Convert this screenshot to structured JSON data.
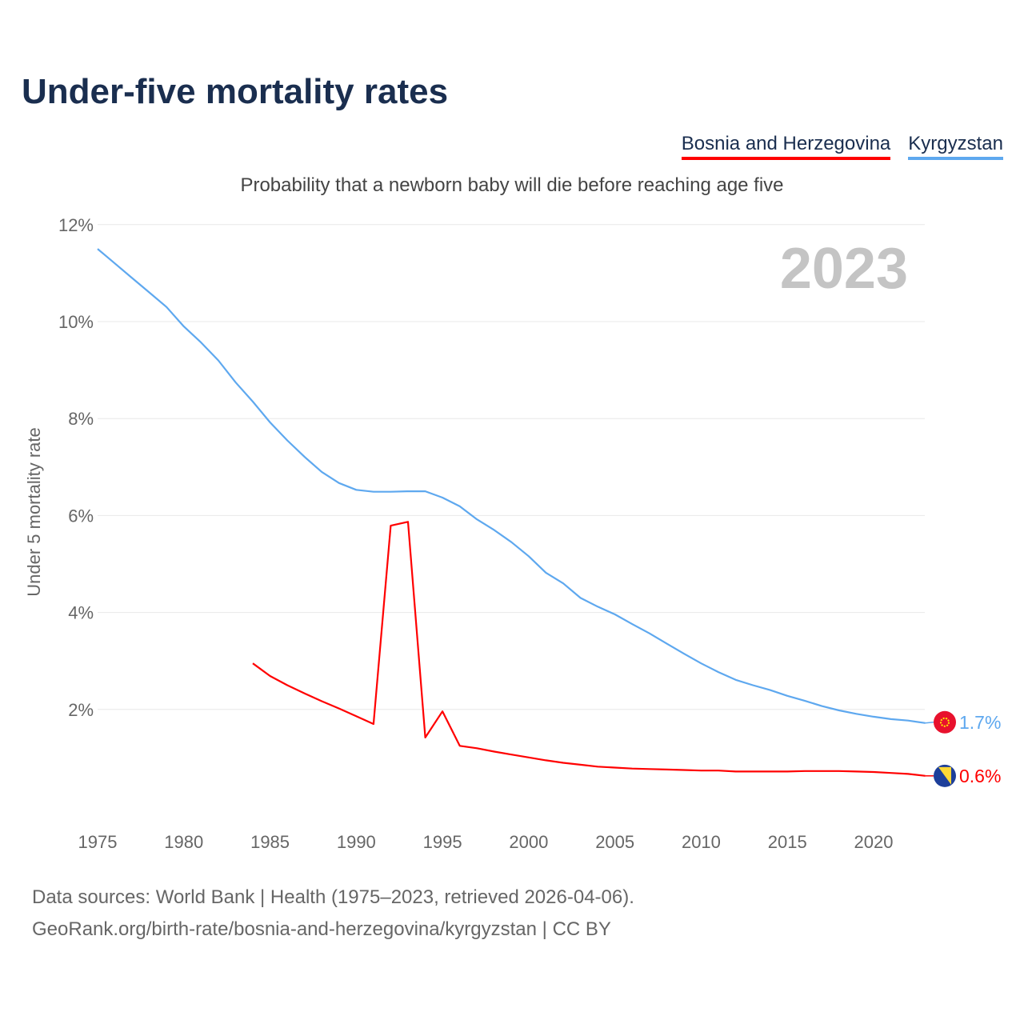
{
  "title": "Under-five mortality rates",
  "subtitle": "Probability that a newborn baby will die before reaching age five",
  "year_watermark": "2023",
  "sources": [
    "Data sources: World Bank | Health (1975–2023, retrieved 2026-04-06).",
    "GeoRank.org/birth-rate/bosnia-and-herzegovina/kyrgyzstan | CC BY"
  ],
  "chart_data": {
    "type": "line",
    "title": "Under-five mortality rates",
    "xlabel": "",
    "ylabel": "Under 5 mortality rate",
    "xlim": [
      1975,
      2023
    ],
    "ylim": [
      0,
      12
    ],
    "x_ticks": [
      "1975",
      "1980",
      "1985",
      "1990",
      "1995",
      "2000",
      "2005",
      "2010",
      "2015",
      "2020"
    ],
    "y_ticks": [
      "2%",
      "4%",
      "6%",
      "8%",
      "10%",
      "12%"
    ],
    "grid": true,
    "legend_position": "top-right",
    "series": [
      {
        "name": "Bosnia and Herzegovina",
        "color": "#ff0000",
        "end_label": "0.6%",
        "flag": "bosnia-flag",
        "start_year": 1984,
        "values": [
          2.95,
          2.69,
          2.5,
          2.33,
          2.17,
          2.02,
          1.86,
          1.7,
          5.79,
          5.87,
          1.42,
          1.96,
          1.25,
          1.2,
          1.13,
          1.07,
          1.01,
          0.95,
          0.9,
          0.86,
          0.82,
          0.8,
          0.78,
          0.77,
          0.76,
          0.75,
          0.74,
          0.74,
          0.72,
          0.72,
          0.72,
          0.72,
          0.73,
          0.73,
          0.73,
          0.72,
          0.71,
          0.69,
          0.67,
          0.63
        ]
      },
      {
        "name": "Kyrgyzstan",
        "color": "#5ea8ef",
        "end_label": "1.7%",
        "flag": "kyrgyzstan-flag",
        "start_year": 1975,
        "values": [
          11.5,
          11.2,
          10.9,
          10.6,
          10.3,
          9.9,
          9.57,
          9.2,
          8.75,
          8.35,
          7.92,
          7.55,
          7.21,
          6.9,
          6.67,
          6.53,
          6.49,
          6.49,
          6.5,
          6.5,
          6.37,
          6.19,
          5.92,
          5.7,
          5.45,
          5.16,
          4.82,
          4.6,
          4.3,
          4.12,
          3.96,
          3.76,
          3.57,
          3.36,
          3.15,
          2.95,
          2.77,
          2.61,
          2.5,
          2.4,
          2.28,
          2.18,
          2.07,
          1.98,
          1.91,
          1.85,
          1.8,
          1.77,
          1.72
        ]
      }
    ]
  }
}
